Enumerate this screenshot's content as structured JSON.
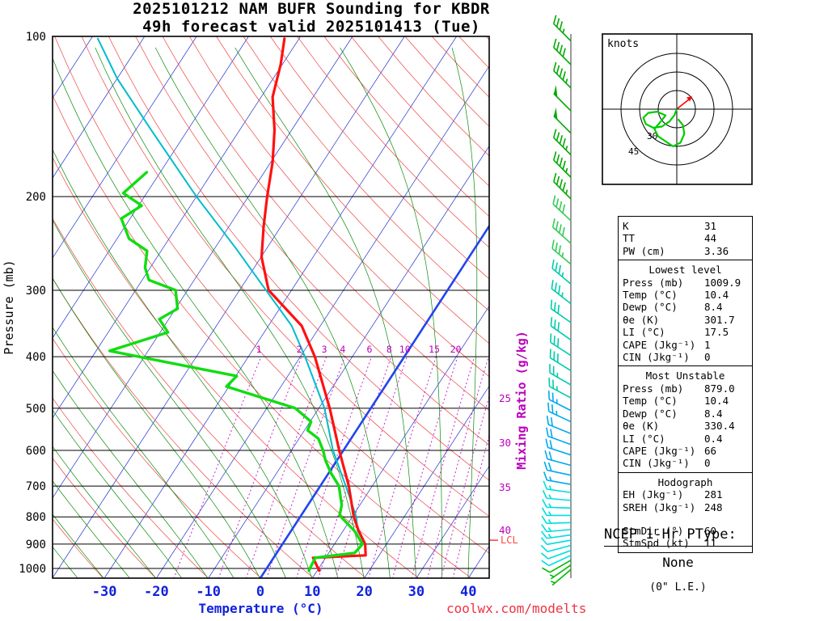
{
  "title": {
    "line1": "2025101212 NAM BUFR Sounding for KBDR",
    "line2": "49h forecast valid 2025101413 (Tue)"
  },
  "watermark": "coolwx.com/modelts",
  "axes": {
    "pressure_label": "Pressure (mb)",
    "temperature_label": "Temperature (°C)",
    "mixing_ratio_label": "Mixing Ratio (g/kg)",
    "pressure_ticks": [
      100,
      200,
      300,
      400,
      500,
      600,
      700,
      800,
      900,
      1000
    ],
    "temperature_ticks": [
      -30,
      -20,
      -10,
      0,
      10,
      20,
      30,
      40
    ],
    "mixing_ratio_top_labels": [
      1,
      2,
      3,
      4,
      6,
      8,
      10,
      15,
      20
    ],
    "mixing_ratio_right_labels": [
      25,
      30,
      35,
      40
    ],
    "lcl_label": "LCL"
  },
  "chart_data": {
    "type": "line",
    "subtype": "skew-t log-p sounding",
    "pressure_axis": {
      "scale": "log",
      "range_mb": [
        100,
        1045
      ]
    },
    "temperature_axis": {
      "range_C_at_surface": [
        -40,
        44
      ],
      "skew": "isotherms slant right with height"
    },
    "isopleths": {
      "isotherm_step_C": 10,
      "dry_adiabat_step_K": 10,
      "moist_adiabat_step_C": 5,
      "mixing_ratio_lines_gkg": [
        1,
        2,
        3,
        4,
        6,
        8,
        10,
        15,
        20,
        25,
        30,
        35,
        40
      ],
      "highlighted_isotherm_C": 0
    },
    "temperature_profile_p_T": [
      [
        1010,
        10.4
      ],
      [
        955,
        7.6
      ],
      [
        945,
        17.4
      ],
      [
        900,
        15.9
      ],
      [
        850,
        13.0
      ],
      [
        800,
        10.3
      ],
      [
        700,
        5.5
      ],
      [
        600,
        -0.8
      ],
      [
        500,
        -7.9
      ],
      [
        400,
        -17.2
      ],
      [
        350,
        -23.6
      ],
      [
        300,
        -34.4
      ],
      [
        260,
        -39.9
      ],
      [
        228,
        -43.3
      ],
      [
        200,
        -46.4
      ],
      [
        172,
        -49.7
      ],
      [
        150,
        -53.3
      ],
      [
        130,
        -57.8
      ],
      [
        113,
        -60.3
      ],
      [
        101,
        -62.8
      ]
    ],
    "dewpoint_profile_p_T": [
      [
        1010,
        8.4
      ],
      [
        955,
        8.0
      ],
      [
        935,
        15.0
      ],
      [
        900,
        15.4
      ],
      [
        850,
        12.2
      ],
      [
        830,
        10.5
      ],
      [
        795,
        7.4
      ],
      [
        760,
        6.5
      ],
      [
        700,
        3.6
      ],
      [
        660,
        0.3
      ],
      [
        625,
        -2.3
      ],
      [
        600,
        -3.9
      ],
      [
        570,
        -6.3
      ],
      [
        550,
        -9.4
      ],
      [
        530,
        -9.8
      ],
      [
        500,
        -14.5
      ],
      [
        455,
        -30.5
      ],
      [
        435,
        -29.8
      ],
      [
        390,
        -57.4
      ],
      [
        360,
        -48.5
      ],
      [
        340,
        -51.8
      ],
      [
        325,
        -49.6
      ],
      [
        300,
        -52.3
      ],
      [
        287,
        -58.7
      ],
      [
        272,
        -61.0
      ],
      [
        253,
        -62.7
      ],
      [
        240,
        -67.7
      ],
      [
        220,
        -71.7
      ],
      [
        208,
        -69.4
      ],
      [
        197,
        -74.5
      ],
      [
        180,
        -72.6
      ]
    ],
    "parcel_path_p_T": [
      [
        900,
        15.9
      ],
      [
        850,
        12.8
      ],
      [
        800,
        10.8
      ],
      [
        700,
        4.9
      ],
      [
        600,
        -2.0
      ],
      [
        500,
        -8.9
      ],
      [
        400,
        -19.1
      ],
      [
        350,
        -25.5
      ],
      [
        300,
        -34.9
      ],
      [
        250,
        -46.0
      ],
      [
        200,
        -60.0
      ],
      [
        150,
        -77.0
      ],
      [
        120,
        -90.0
      ],
      [
        101,
        -98.7
      ]
    ],
    "lcl_pressure_mb": 885,
    "wind_barbs": [
      [
        1005,
        5,
        230,
        "#00bb00"
      ],
      [
        985,
        5,
        235,
        "#00bb00"
      ],
      [
        965,
        10,
        240,
        "#00bb00"
      ],
      [
        945,
        10,
        245,
        "#00dddd"
      ],
      [
        925,
        10,
        250,
        "#00dddd"
      ],
      [
        905,
        10,
        255,
        "#00dddd"
      ],
      [
        885,
        10,
        260,
        "#00dddd"
      ],
      [
        865,
        15,
        262,
        "#00dddd"
      ],
      [
        845,
        15,
        265,
        "#00dddd"
      ],
      [
        820,
        15,
        268,
        "#00dddd"
      ],
      [
        795,
        15,
        270,
        "#00dddd"
      ],
      [
        770,
        15,
        272,
        "#00dddd"
      ],
      [
        745,
        15,
        275,
        "#00dddd"
      ],
      [
        720,
        15,
        278,
        "#00dddd"
      ],
      [
        695,
        15,
        280,
        "#00aaee"
      ],
      [
        668,
        20,
        282,
        "#00aaee"
      ],
      [
        640,
        20,
        285,
        "#00aaee"
      ],
      [
        612,
        20,
        288,
        "#00aaee"
      ],
      [
        585,
        20,
        290,
        "#00aaee"
      ],
      [
        558,
        20,
        292,
        "#00aaee"
      ],
      [
        530,
        25,
        295,
        "#00aaee"
      ],
      [
        505,
        25,
        297,
        "#00aaee"
      ],
      [
        478,
        25,
        298,
        "#00ccaa"
      ],
      [
        452,
        25,
        300,
        "#00ccaa"
      ],
      [
        425,
        30,
        302,
        "#00ccaa"
      ],
      [
        398,
        30,
        303,
        "#00ccaa"
      ],
      [
        372,
        30,
        305,
        "#00ccaa"
      ],
      [
        345,
        30,
        305,
        "#00ccaa"
      ],
      [
        318,
        35,
        308,
        "#00ccaa"
      ],
      [
        292,
        35,
        310,
        "#00ccaa"
      ],
      [
        268,
        35,
        310,
        "#33cc55"
      ],
      [
        245,
        40,
        312,
        "#33cc55"
      ],
      [
        222,
        40,
        313,
        "#33cc55"
      ],
      [
        202,
        45,
        315,
        "#00aa00"
      ],
      [
        184,
        45,
        315,
        "#00aa00"
      ],
      [
        167,
        45,
        315,
        "#00aa00"
      ],
      [
        152,
        50,
        315,
        "#00aa00"
      ],
      [
        138,
        50,
        315,
        "#00aa00"
      ],
      [
        125,
        45,
        315,
        "#00aa00"
      ],
      [
        113,
        40,
        315,
        "#00aa00"
      ],
      [
        102,
        35,
        315,
        "#00aa00"
      ]
    ],
    "hodograph": {
      "unit": "knots",
      "ring_interval_kt": 15,
      "rings_kt": [
        15,
        30,
        45
      ],
      "ring_labels": [
        "30",
        "45"
      ],
      "trace_uv_kt": [
        [
          0,
          0
        ],
        [
          -2,
          -5
        ],
        [
          -6,
          -10
        ],
        [
          -12,
          -14
        ],
        [
          -19,
          -15
        ],
        [
          -25,
          -12
        ],
        [
          -27,
          -7
        ],
        [
          -23,
          -3
        ],
        [
          -16,
          -2
        ],
        [
          -9,
          -5
        ],
        [
          -13,
          -10
        ],
        [
          -18,
          -16
        ],
        [
          -15,
          -22
        ],
        [
          -9,
          -26
        ],
        [
          -3,
          -30
        ],
        [
          3,
          -27
        ],
        [
          6,
          -20
        ],
        [
          5,
          -13
        ],
        [
          1,
          -8
        ]
      ],
      "storm_motion": {
        "dir_deg": 60,
        "spd_kt": 11
      }
    }
  },
  "hodograph_panel": {
    "unit_label": "knots"
  },
  "indices": {
    "sections": [
      {
        "rows": [
          [
            "K",
            "31"
          ],
          [
            "TT",
            "44"
          ],
          [
            "PW (cm)",
            "3.36"
          ]
        ]
      },
      {
        "header": "Lowest level",
        "rows": [
          [
            "Press (mb)",
            "1009.9"
          ],
          [
            "Temp (°C)",
            "10.4"
          ],
          [
            "Dewp (°C)",
            "8.4"
          ],
          [
            "θe (K)",
            "301.7"
          ],
          [
            "LI (°C)",
            "17.5"
          ],
          [
            "CAPE (Jkg⁻¹)",
            "1"
          ],
          [
            "CIN (Jkg⁻¹)",
            "0"
          ]
        ]
      },
      {
        "header": "Most Unstable",
        "rows": [
          [
            "Press (mb)",
            "879.0"
          ],
          [
            "Temp (°C)",
            "10.4"
          ],
          [
            "Dewp (°C)",
            "8.4"
          ],
          [
            "θe (K)",
            "330.4"
          ],
          [
            "LI (°C)",
            "0.4"
          ],
          [
            "CAPE (Jkg⁻¹)",
            "66"
          ],
          [
            "CIN (Jkg⁻¹)",
            "0"
          ]
        ]
      },
      {
        "header": "Hodograph",
        "rows": [
          [
            "EH (Jkg⁻¹)",
            "281"
          ],
          [
            "SREH (Jkg⁻¹)",
            "248"
          ]
        ],
        "rows2": [
          [
            "StmDir (°)",
            "60"
          ],
          [
            "StmSpd (kt)",
            "11"
          ]
        ]
      }
    ]
  },
  "ptype": {
    "heading": "NCEP 1-Hr PType:",
    "value": "None",
    "le": "(0\" L.E.)"
  }
}
